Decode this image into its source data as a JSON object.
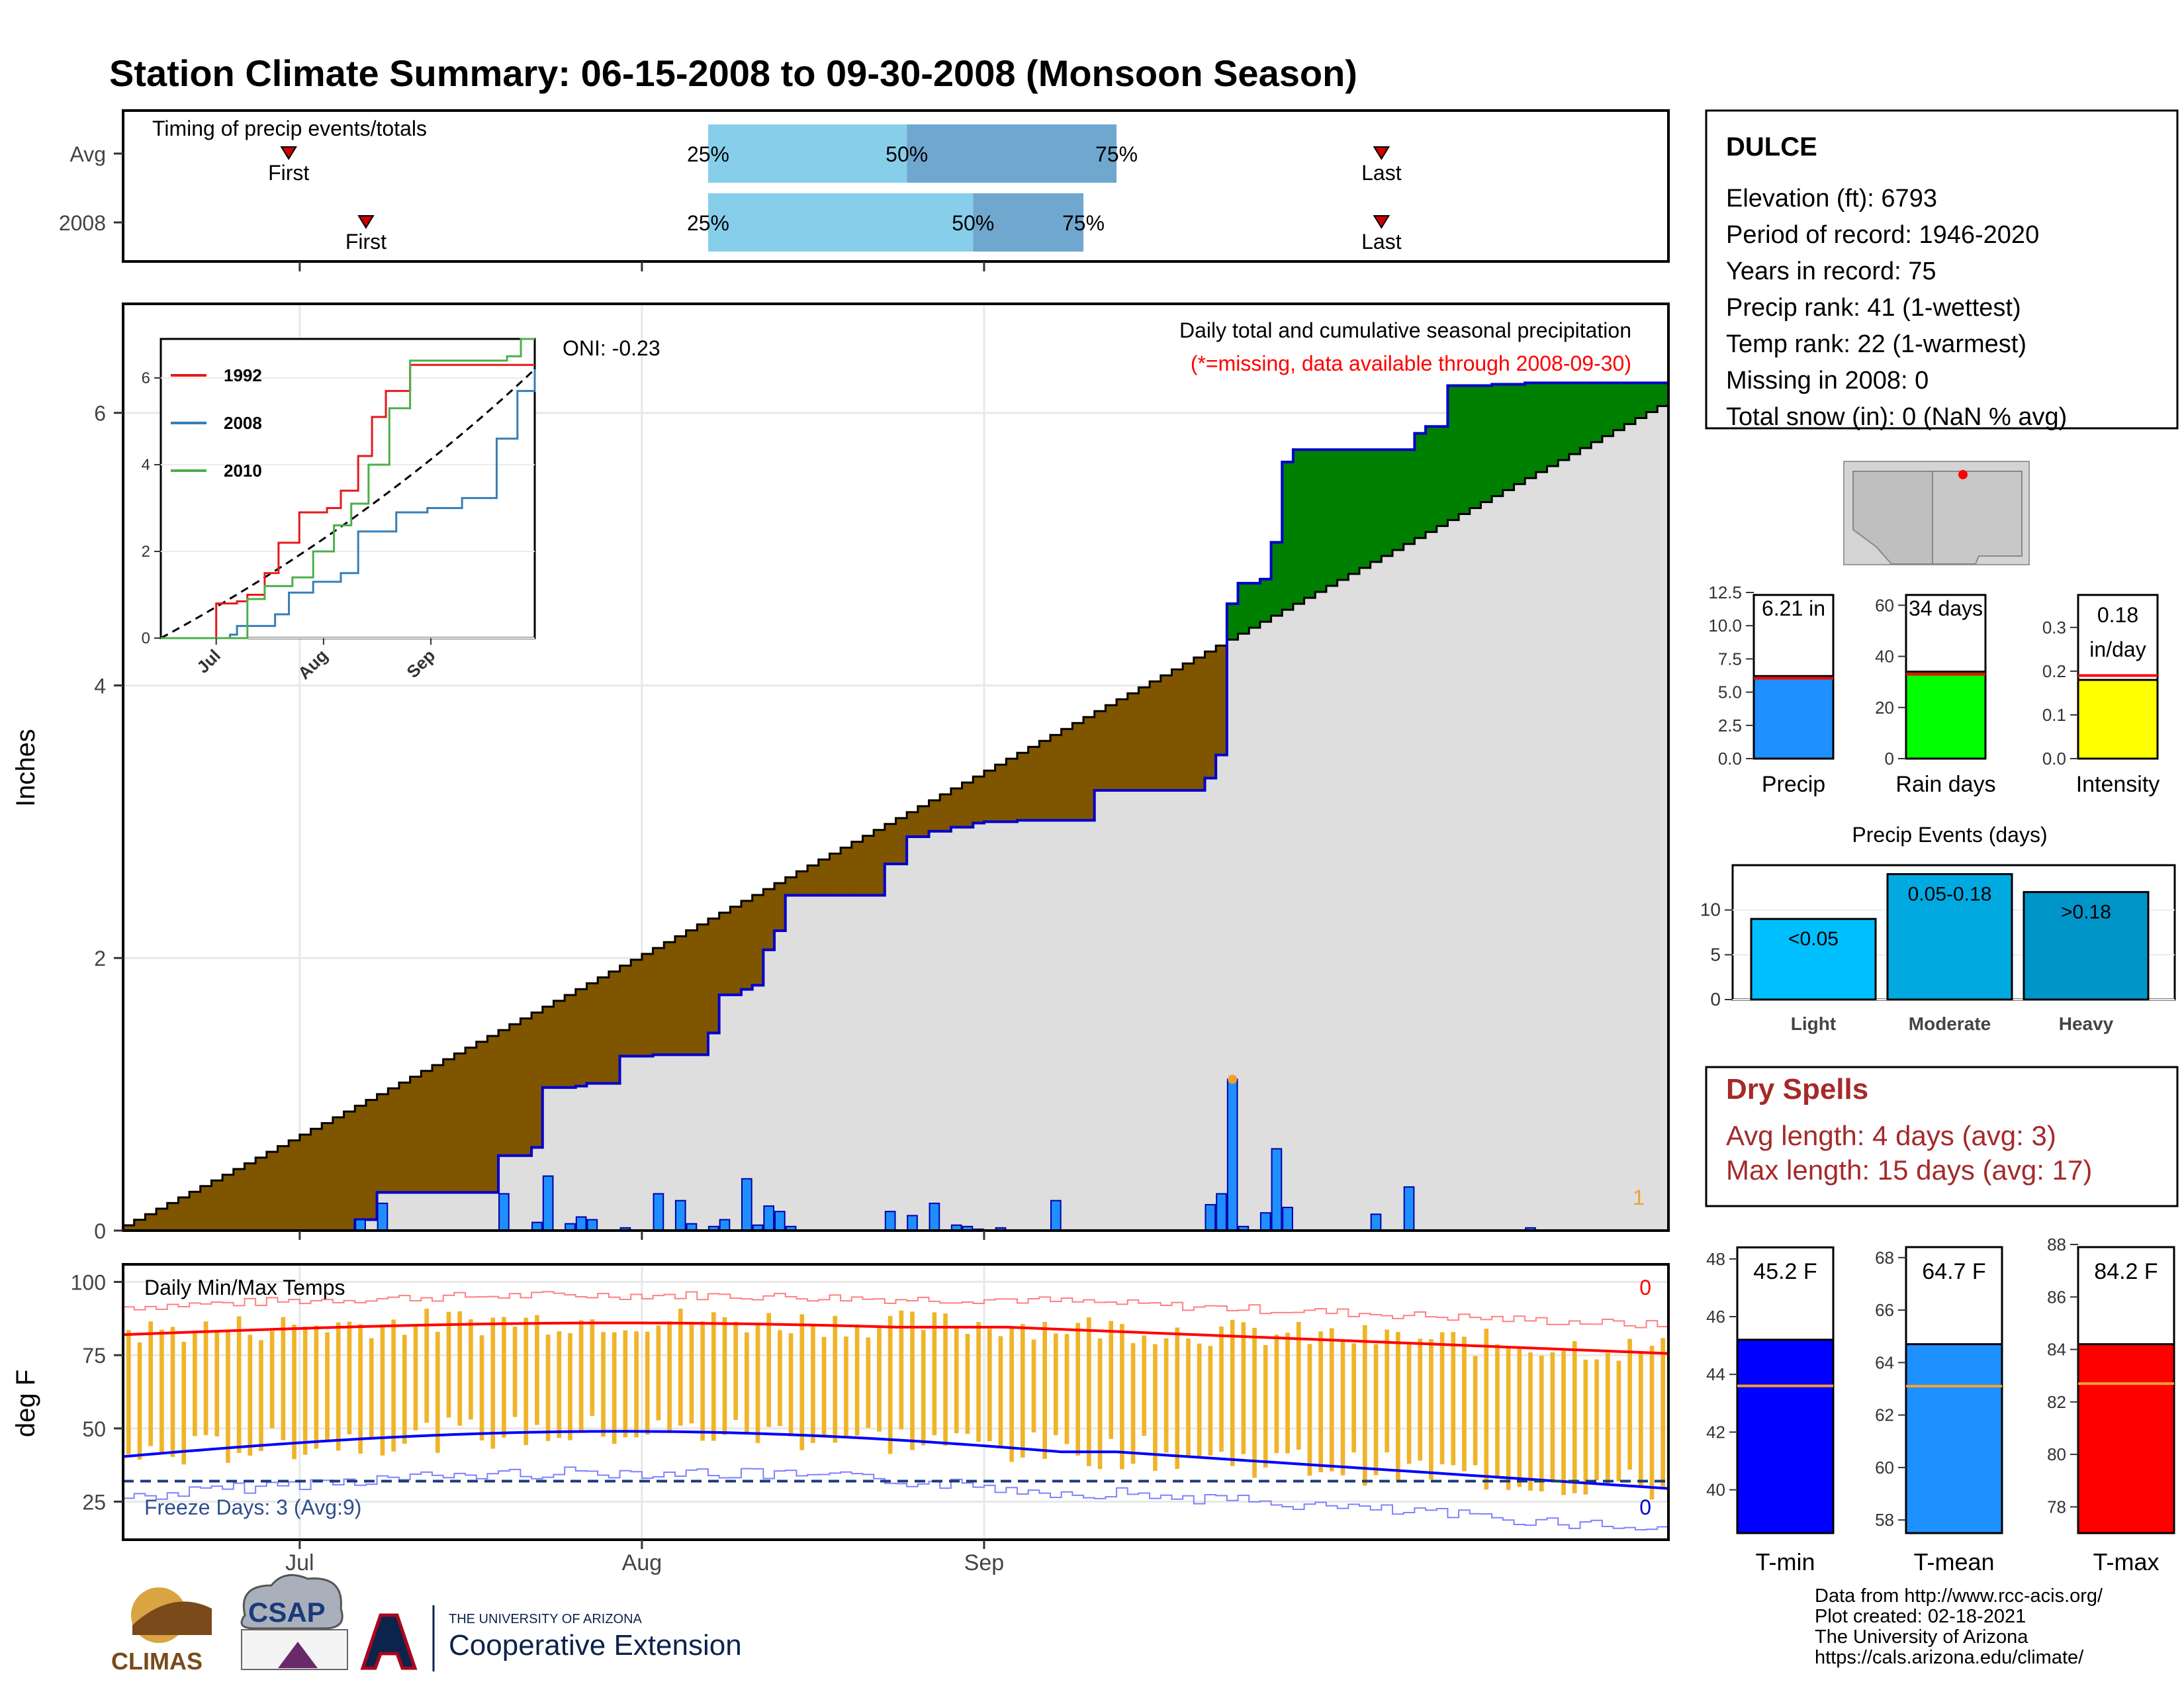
{
  "title": "Station Climate Summary: 06-15-2008 to 09-30-2008 (Monsoon Season)",
  "colors": {
    "title": "#ff0000",
    "above_avg": "#008000",
    "below_avg": "#7f5500",
    "cum_2008": "#0000cc",
    "bars": "#1f8fff",
    "avg_line": "#000000",
    "q_light": "#87ceeb",
    "q_dark": "#6fa7cf",
    "dry_spells": "#a52a2a",
    "tmax": "#ff0000",
    "tmin": "#0000ff",
    "temp_bars": "#f0b429"
  },
  "timing": {
    "label": "Timing of precip events/totals",
    "rows": [
      {
        "name": "Avg",
        "first_day": 15,
        "q25_day": 53,
        "q50_day": 71,
        "q75_day": 90,
        "last_day": 114,
        "first_label": "First",
        "last_label": "Last",
        "q25_label": "25%",
        "q50_label": "50%",
        "q75_label": "75%"
      },
      {
        "name": "2008",
        "first_day": 22,
        "q25_day": 53,
        "q50_day": 77,
        "q75_day": 87,
        "last_day": 114,
        "first_label": "First",
        "last_label": "Last",
        "q25_label": "25%",
        "q50_label": "50%",
        "q75_label": "75%"
      }
    ]
  },
  "precip_panel": {
    "ylabel": "Inches",
    "oni": "ONI: -0.23",
    "heading": "Daily total and cumulative seasonal precipitation",
    "subheading": "(*=missing, data available through 2008-09-30)",
    "missing_count": "1",
    "yticks": [
      "0",
      "2",
      "4",
      "6"
    ]
  },
  "inset": {
    "legend": [
      "1992",
      "2008",
      "2010"
    ],
    "legend_colors": [
      "#e41a1c",
      "#377eb8",
      "#4daf4a"
    ],
    "yticks": [
      "0",
      "2",
      "4",
      "6"
    ],
    "xticks": [
      "Jul",
      "Aug",
      "Sep"
    ]
  },
  "temp_panel": {
    "ylabel": "deg F",
    "label": "Daily Min/Max Temps",
    "freeze": "Freeze Days: 3 (Avg:9)",
    "max_count": "0",
    "min_count": "0",
    "yticks": [
      "25",
      "50",
      "75",
      "100"
    ]
  },
  "x_axis": {
    "ticks": [
      "Jul",
      "Aug",
      "Sep"
    ]
  },
  "station": {
    "name": "DULCE",
    "lines": [
      "Elevation (ft): 6793",
      "Period of record: 1946-2020",
      "Years in record: 75",
      "Precip rank: 41 (1-wettest)",
      "Temp rank: 22 (1-warmest)",
      "Missing in 2008: 0",
      "Total snow (in): 0 (NaN % avg)"
    ]
  },
  "mini_bars": [
    {
      "label": "Precip",
      "value_text": "6.21 in",
      "value": 6.21,
      "avg": 6.05,
      "ymax": 12.5,
      "ticks": [
        "0.0",
        "2.5",
        "5.0",
        "7.5",
        "10.0",
        "12.5"
      ],
      "tickvals": [
        0,
        2.5,
        5,
        7.5,
        10,
        12.5
      ],
      "color": "#1e90ff"
    },
    {
      "label": "Rain days",
      "value_text": "34 days",
      "value": 34,
      "avg": 33,
      "ymax": 65,
      "ticks": [
        "0",
        "20",
        "40",
        "60"
      ],
      "tickvals": [
        0,
        20,
        40,
        60
      ],
      "color": "#00ff00"
    },
    {
      "label": "Intensity",
      "value_text": "0.18 in/day",
      "value": 0.18,
      "avg": 0.19,
      "ymax": 0.38,
      "ticks": [
        "0.0",
        "0.1",
        "0.2",
        "0.3"
      ],
      "tickvals": [
        0,
        0.1,
        0.2,
        0.3
      ],
      "color": "#ffff00"
    }
  ],
  "events": {
    "title": "Precip Events (days)",
    "categories": [
      "Light",
      "Moderate",
      "Heavy"
    ],
    "labels": [
      "<0.05",
      "0.05-0.18",
      ">0.18"
    ],
    "values": [
      9,
      14,
      12
    ],
    "colors": [
      "#00bfff",
      "#00a9e0",
      "#0095c8"
    ],
    "yticks": [
      "0",
      "5",
      "10"
    ],
    "ymax": 15
  },
  "dry_spells": {
    "title": "Dry Spells",
    "avg_length": "Avg length: 4 days (avg: 3)",
    "max_length": "Max length: 15 days (avg: 17)"
  },
  "temp_bars": [
    {
      "label": "T-min",
      "value_text": "45.2 F",
      "value": 45.2,
      "avg": 43.6,
      "ymin": 38.5,
      "ymax": 48.5,
      "ticks": [
        "40",
        "42",
        "44",
        "46",
        "48"
      ],
      "tickvals": [
        40,
        42,
        44,
        46,
        48
      ],
      "color": "#0000ff"
    },
    {
      "label": "T-mean",
      "value_text": "64.7 F",
      "value": 64.7,
      "avg": 63.1,
      "ymin": 57.5,
      "ymax": 68.5,
      "ticks": [
        "58",
        "60",
        "62",
        "64",
        "66",
        "68"
      ],
      "tickvals": [
        58,
        60,
        62,
        64,
        66,
        68
      ],
      "color": "#1e90ff"
    },
    {
      "label": "T-max",
      "value_text": "84.2 F",
      "value": 84.2,
      "avg": 82.7,
      "ymin": 77,
      "ymax": 88,
      "ticks": [
        "78",
        "80",
        "82",
        "84",
        "86",
        "88"
      ],
      "tickvals": [
        78,
        80,
        82,
        84,
        86,
        88
      ],
      "color": "#ff0000"
    }
  ],
  "footer": {
    "lines": [
      "Data from http://www.rcc-acis.org/",
      "Plot created: 02-18-2021",
      "The University of Arizona",
      "https://cals.arizona.edu/climate/"
    ],
    "logo_climas": "CLIMAS",
    "logo_csap": "CSAP",
    "logo_ua_small": "THE UNIVERSITY OF ARIZONA",
    "logo_ua_big": "Cooperative Extension"
  },
  "chart_data": {
    "type": "area",
    "start_date": "2008-06-15",
    "end_date": "2008-09-30",
    "ylabel": "Inches",
    "ylim": [
      0,
      6.8
    ],
    "cumulative_2008_steps": [
      [
        0,
        0
      ],
      [
        21,
        0.08
      ],
      [
        23,
        0.28
      ],
      [
        33,
        0.28
      ],
      [
        34,
        0.55
      ],
      [
        37,
        0.61
      ],
      [
        38,
        1.05
      ],
      [
        41,
        1.06
      ],
      [
        42,
        1.08
      ],
      [
        45,
        1.28
      ],
      [
        48,
        1.29
      ],
      [
        50,
        1.29
      ],
      [
        53,
        1.45
      ],
      [
        54,
        1.73
      ],
      [
        56,
        1.77
      ],
      [
        57,
        1.8
      ],
      [
        58,
        2.06
      ],
      [
        59,
        2.2
      ],
      [
        60,
        2.46
      ],
      [
        66,
        2.46
      ],
      [
        68,
        2.46
      ],
      [
        69,
        2.69
      ],
      [
        71,
        2.89
      ],
      [
        73,
        2.93
      ],
      [
        75,
        2.96
      ],
      [
        77,
        2.99
      ],
      [
        78,
        3.0
      ],
      [
        81,
        3.01
      ],
      [
        84,
        3.01
      ],
      [
        88,
        3.23
      ],
      [
        95,
        3.23
      ],
      [
        98,
        3.32
      ],
      [
        99,
        3.49
      ],
      [
        100,
        4.6
      ],
      [
        101,
        4.75
      ],
      [
        103,
        4.78
      ],
      [
        104,
        5.05
      ],
      [
        105,
        5.64
      ],
      [
        106,
        5.73
      ],
      [
        116,
        5.73
      ],
      [
        117,
        5.85
      ],
      [
        118,
        5.9
      ],
      [
        120,
        6.2
      ],
      [
        124,
        6.21
      ],
      [
        127,
        6.22
      ],
      [
        140,
        6.22
      ]
    ],
    "daily_2008": [
      [
        21,
        0.08
      ],
      [
        22,
        0.0
      ],
      [
        23,
        0.2
      ],
      [
        34,
        0.27
      ],
      [
        37,
        0.06
      ],
      [
        38,
        0.4
      ],
      [
        40,
        0.05
      ],
      [
        41,
        0.1
      ],
      [
        42,
        0.08
      ],
      [
        45,
        0.02
      ],
      [
        48,
        0.27
      ],
      [
        50,
        0.22
      ],
      [
        51,
        0.05
      ],
      [
        53,
        0.03
      ],
      [
        54,
        0.08
      ],
      [
        56,
        0.38
      ],
      [
        57,
        0.04
      ],
      [
        58,
        0.18
      ],
      [
        59,
        0.14
      ],
      [
        60,
        0.03
      ],
      [
        69,
        0.14
      ],
      [
        71,
        0.11
      ],
      [
        73,
        0.2
      ],
      [
        75,
        0.04
      ],
      [
        76,
        0.03
      ],
      [
        77,
        0.01
      ],
      [
        79,
        0.02
      ],
      [
        84,
        0.22
      ],
      [
        98,
        0.19
      ],
      [
        99,
        0.27
      ],
      [
        100,
        1.11
      ],
      [
        101,
        0.03
      ],
      [
        103,
        0.13
      ],
      [
        104,
        0.6
      ],
      [
        105,
        0.17
      ],
      [
        113,
        0.12
      ],
      [
        116,
        0.32
      ],
      [
        127,
        0.02
      ]
    ],
    "cumulative_avg_endpoint": [
      140,
      6.05
    ],
    "temp_ylim": [
      12,
      106
    ],
    "tmax_avg": [
      83,
      85,
      86,
      86,
      85,
      84,
      82,
      79,
      77,
      75,
      74
    ]
  }
}
